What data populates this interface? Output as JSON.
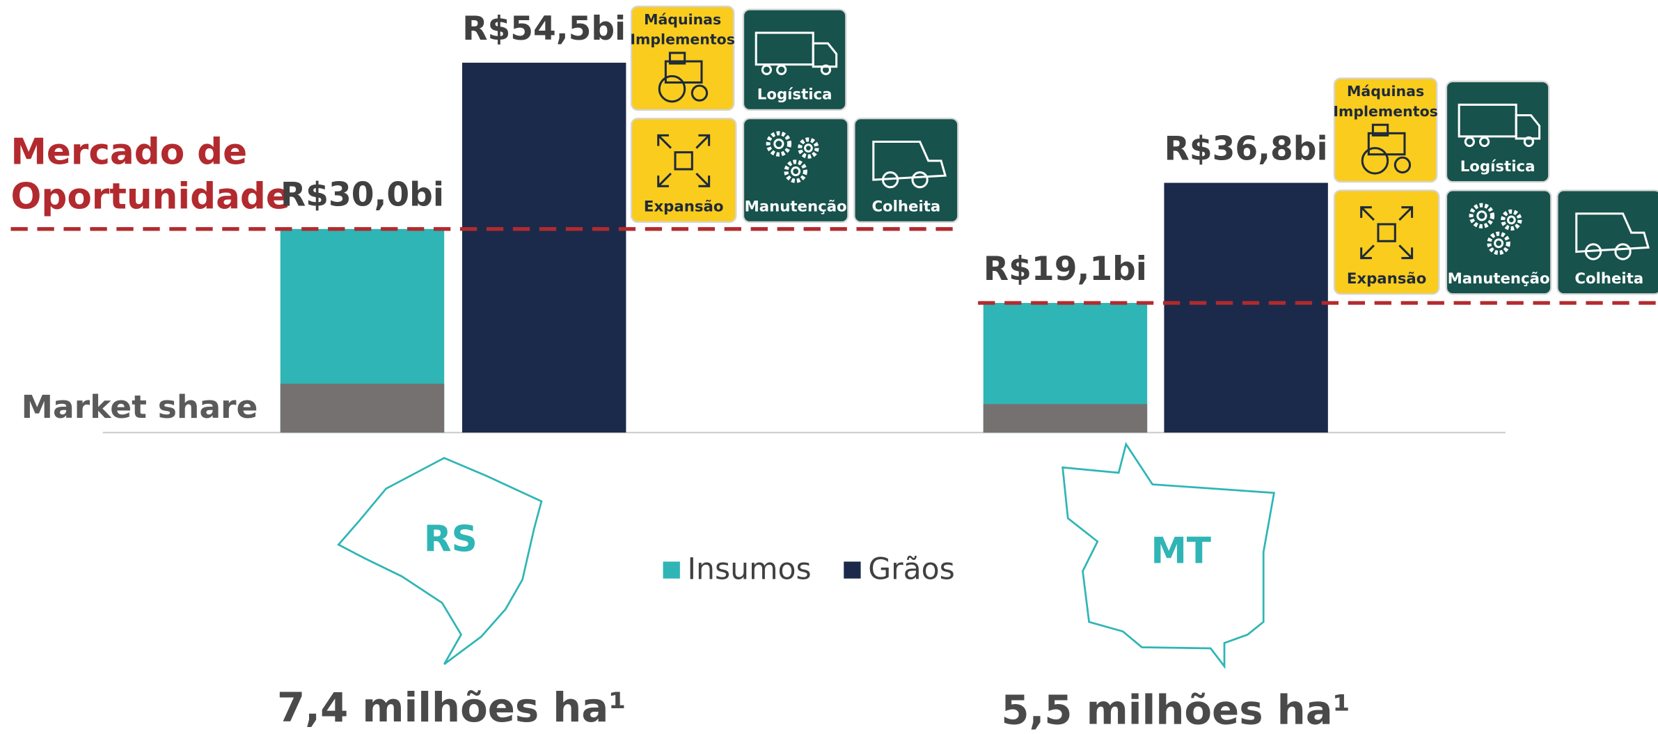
{
  "chart_data": {
    "type": "bar",
    "categories": [
      "RS",
      "MT"
    ],
    "series": [
      {
        "name": "Insumos",
        "color": "#2fb5b5",
        "values": [
          30.0,
          19.1
        ],
        "value_labels": [
          "R$30,0bi",
          "R$19,1bi"
        ]
      },
      {
        "name": "Grãos",
        "color": "#1b2a4a",
        "values": [
          54.5,
          36.8
        ],
        "value_labels": [
          "R$54,5bi",
          "R$36,8bi"
        ]
      }
    ],
    "market_share": {
      "label": "Market share",
      "color": "#767171",
      "values": [
        7.2,
        4.2
      ]
    },
    "opportunity_label": [
      "Mercado de",
      "Oportunidade"
    ],
    "opportunity_color": "#b22a2e",
    "areas": [
      "7,4 milhões ha¹",
      "5,5 milhões ha¹"
    ],
    "tiles": [
      [
        "Máquinas",
        "Implementos"
      ],
      [
        "Logística"
      ],
      [
        "Expansão"
      ],
      [
        "Manutenção"
      ],
      [
        "Colheita"
      ]
    ],
    "ylim": [
      0,
      60
    ]
  }
}
